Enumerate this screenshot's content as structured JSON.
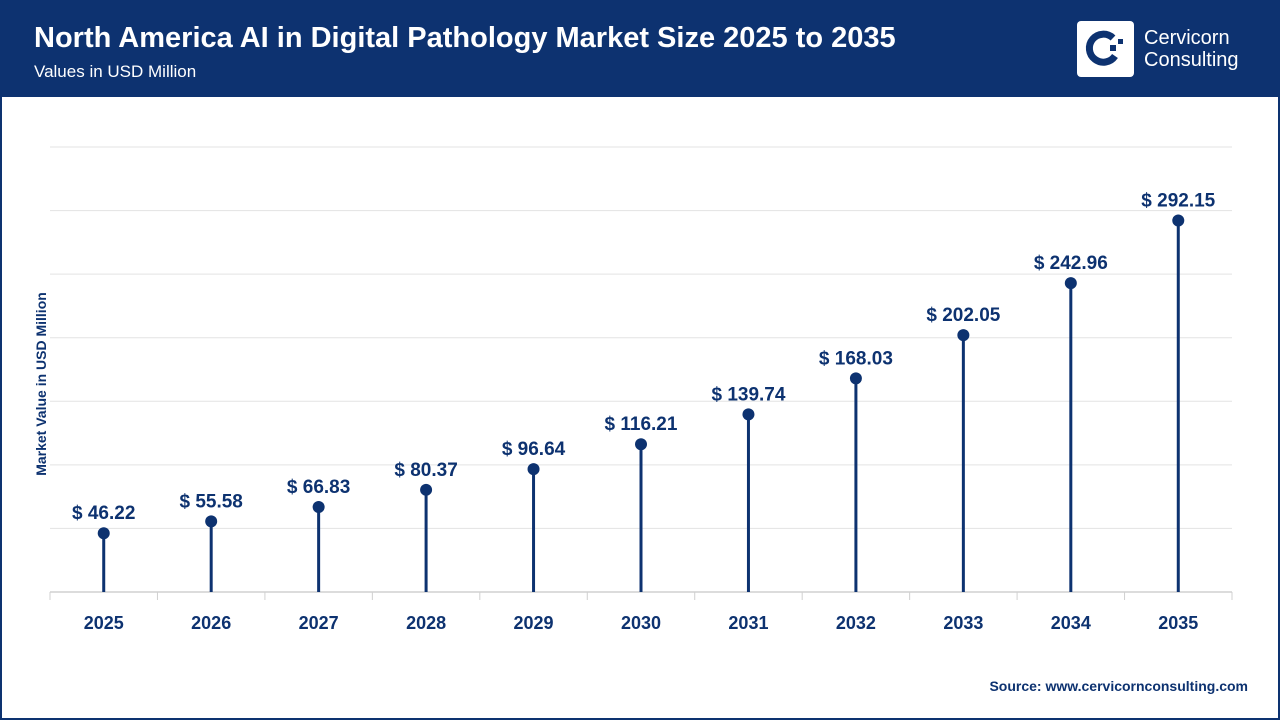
{
  "header": {
    "title": "North America AI in Digital Pathology Market Size 2025 to 2035",
    "subtitle": "Values in USD Million"
  },
  "logo": {
    "line1": "Cervicorn",
    "line2": "Consulting"
  },
  "source": "Source: www.cervicornconsulting.com",
  "colors": {
    "header": "#0d3270",
    "series": "#0d3270",
    "grid": "#e3e3e3"
  },
  "chart_data": {
    "type": "lollipop",
    "title": "North America AI in Digital Pathology Market Size 2025 to 2035",
    "subtitle": "Values in USD Million",
    "xlabel": "",
    "ylabel": "Market Value in USD Million",
    "ylim": [
      0,
      350
    ],
    "grid": true,
    "categories": [
      "2025",
      "2026",
      "2027",
      "2028",
      "2029",
      "2030",
      "2031",
      "2032",
      "2033",
      "2034",
      "2035"
    ],
    "values": [
      46.22,
      55.58,
      66.83,
      80.37,
      96.64,
      116.21,
      139.74,
      168.03,
      202.05,
      242.96,
      292.15
    ],
    "labels": [
      "$ 46.22",
      "$ 55.58",
      "$ 66.83",
      "$ 80.37",
      "$ 96.64",
      "$ 116.21",
      "$ 139.74",
      "$ 168.03",
      "$ 202.05",
      "$ 242.96",
      "$ 292.15"
    ]
  }
}
